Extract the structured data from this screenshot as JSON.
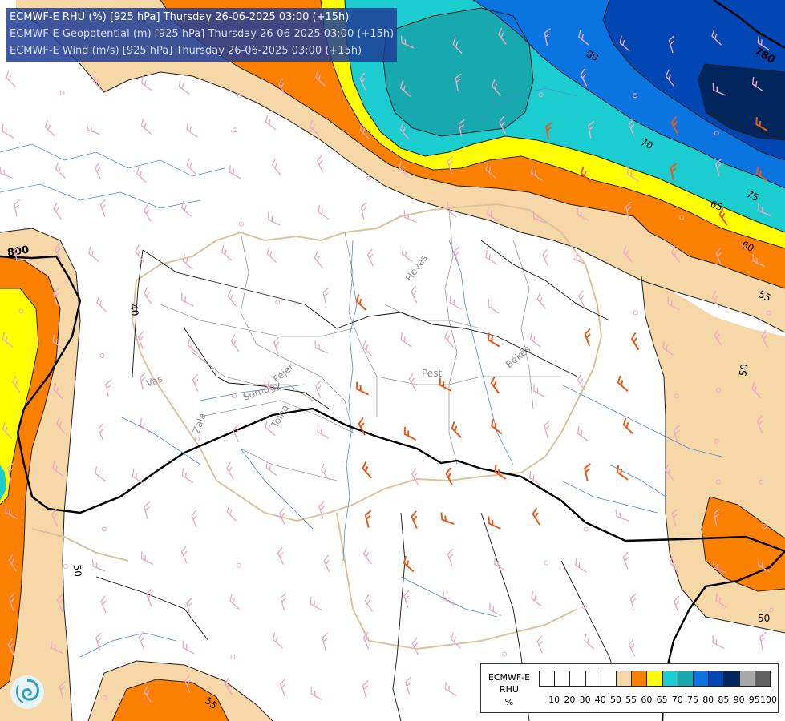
{
  "header": {
    "line1": "ECMWF-E RHU (%) [925 hPa] Thursday 26-06-2025 03:00 (+15h)",
    "line2": "ECMWF-E Geopotential (m) [925 hPa] Thursday 26-06-2025 03:00 (+15h)",
    "line3": "ECMWF-E Wind (m/s) [925 hPa] Thursday 26-06-2025 03:00 (+15h)"
  },
  "legend": {
    "title_model": "ECMWF-E",
    "title_param": "RHU",
    "title_unit": "%",
    "colors": [
      "#ffffff",
      "#ffffff",
      "#ffffff",
      "#ffffff",
      "#ffffff",
      "#f5d7a8",
      "#fb8000",
      "#ffff00",
      "#1ccdd0",
      "#18a9af",
      "#0a74e0",
      "#0047b3",
      "#00265e",
      "#a8a8a8",
      "#606060"
    ],
    "ticks": [
      "10",
      "20",
      "30",
      "40",
      "50",
      "55",
      "60",
      "65",
      "70",
      "75",
      "80",
      "85",
      "90",
      "95",
      "100"
    ]
  },
  "contour_labels": {
    "rhu": [
      "80",
      "70",
      "75",
      "65",
      "60",
      "55",
      "50",
      "50",
      "50",
      "55",
      "40"
    ],
    "geopotential": [
      "780",
      "800"
    ]
  },
  "place_labels": [
    "Heves",
    "Pest",
    "Békés",
    "Vas",
    "Zala",
    "Somogy",
    "Tolna",
    "Fejér"
  ],
  "colors": {
    "title_bg": "#1e3c96",
    "wind_barb_strong": "#e85a1a",
    "wind_barb_weak": "#f0a8c8",
    "river": "#4a8ad0",
    "border": "#e0c8a0"
  },
  "logo_icon": "ecmwf-swirl-icon"
}
